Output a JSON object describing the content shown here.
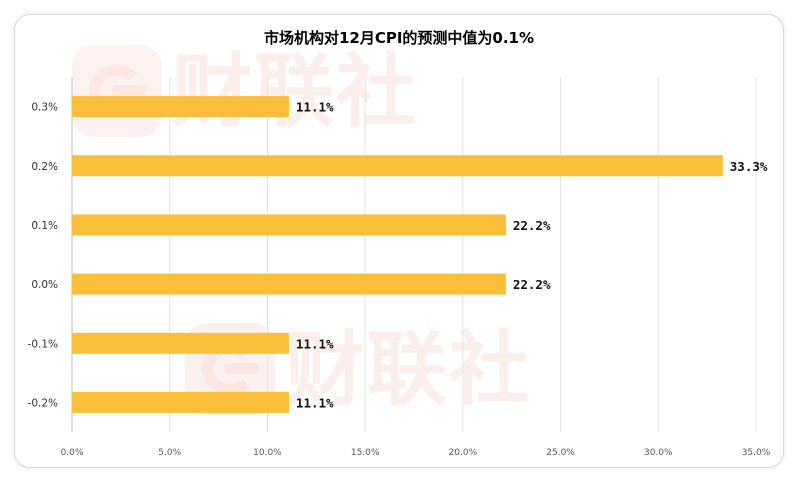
{
  "watermark": {
    "text": "财联社"
  },
  "chart_data": {
    "type": "bar",
    "orientation": "horizontal",
    "title": "市场机构对12月CPI的预测中值为0.1%",
    "xlabel": "",
    "ylabel": "",
    "categories": [
      "0.3%",
      "0.2%",
      "0.1%",
      "0.0%",
      "-0.1%",
      "-0.2%"
    ],
    "values": [
      11.1,
      33.3,
      22.2,
      22.2,
      11.1,
      11.1
    ],
    "data_labels": [
      "11.1%",
      "33.3%",
      "22.2%",
      "22.2%",
      "11.1%",
      "11.1%"
    ],
    "xlim": [
      0,
      35
    ],
    "x_ticks": [
      "0.0%",
      "5.0%",
      "10.0%",
      "15.0%",
      "20.0%",
      "25.0%",
      "30.0%",
      "35.0%"
    ],
    "grid": "vertical",
    "legend": "none",
    "bar_color": "#f9bf3b"
  }
}
